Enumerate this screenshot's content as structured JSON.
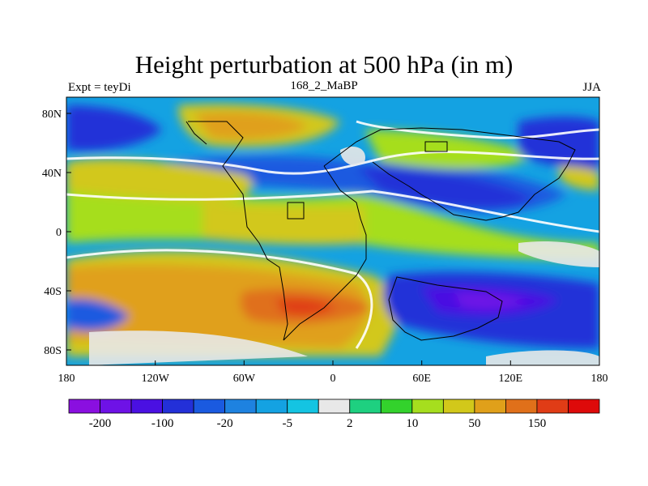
{
  "title": "Height perturbation at 500 hPa (in m)",
  "left_string": "Expt = teyDi",
  "center_string": "168_2_MaBP",
  "right_string": "JJA",
  "lat_labels": [
    "80N",
    "40N",
    "0",
    "40S",
    "80S"
  ],
  "lon_labels": [
    "180",
    "120W",
    "60W",
    "0",
    "60E",
    "120E",
    "180"
  ],
  "colorbar": {
    "colors": [
      "#8a0fe0",
      "#6e12e6",
      "#4a10e2",
      "#2330d8",
      "#1a5ae0",
      "#1e82e0",
      "#14a2e2",
      "#14c4e2",
      "#e8e8e8",
      "#1ed080",
      "#33d22c",
      "#a6de1e",
      "#d2c81a",
      "#e0a01a",
      "#e0701a",
      "#e03c16",
      "#de0a0a"
    ],
    "labels": [
      "-200",
      "-100",
      "-20",
      "-5",
      "2",
      "10",
      "50",
      "150"
    ]
  }
}
